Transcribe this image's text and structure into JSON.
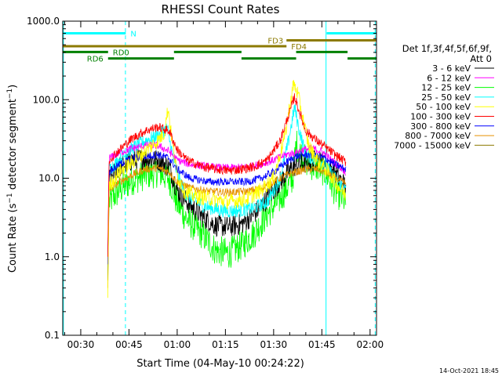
{
  "chart_data": {
    "type": "line",
    "title": "RHESSI Count Rates",
    "xlabel": "Start Time (04-May-10 00:24:22)",
    "ylabel_main": "Count Rate (s",
    "ylabel_exp": "−1",
    "ylabel_mid": " detector segment",
    "ylabel_exp2": "−1",
    "ylabel_end": ")",
    "yscale": "log",
    "ylim": [
      0.1,
      1000
    ],
    "xlim_min": [
      24.4,
      122
    ],
    "y_ticks": [
      {
        "value": 0.1,
        "label": "0.1"
      },
      {
        "value": 1,
        "label": "1.0"
      },
      {
        "value": 10,
        "label": "10.0"
      },
      {
        "value": 100,
        "label": "100.0"
      },
      {
        "value": 1000,
        "label": "1000.0"
      }
    ],
    "x_ticks": [
      {
        "value": 30,
        "label": "00:30"
      },
      {
        "value": 45,
        "label": "00:45"
      },
      {
        "value": 60,
        "label": "01:00"
      },
      {
        "value": 75,
        "label": "01:15"
      },
      {
        "value": 90,
        "label": "01:30"
      },
      {
        "value": 105,
        "label": "01:45"
      },
      {
        "value": 120,
        "label": "02:00"
      }
    ],
    "legend_header": [
      "Det 1f,3f,4f,5f,6f,9f,",
      "Att 0"
    ],
    "legend_position": "right",
    "series": [
      {
        "name": "3 - 6 keV",
        "color": "#000000",
        "anchors": [
          [
            38.4,
            0.5
          ],
          [
            38.8,
            9.5
          ],
          [
            42,
            14
          ],
          [
            46,
            17
          ],
          [
            50,
            18
          ],
          [
            54,
            17
          ],
          [
            57.5,
            14
          ],
          [
            60,
            7
          ],
          [
            63,
            5
          ],
          [
            68,
            3.2
          ],
          [
            72,
            2.5
          ],
          [
            76,
            2.4
          ],
          [
            80,
            2.6
          ],
          [
            84,
            3.5
          ],
          [
            88,
            5.5
          ],
          [
            92,
            9
          ],
          [
            96,
            14
          ],
          [
            98.5,
            15
          ],
          [
            101,
            16
          ],
          [
            103.5,
            17
          ],
          [
            106,
            16
          ],
          [
            109,
            12
          ],
          [
            111,
            9
          ],
          [
            112.5,
            8
          ]
        ]
      },
      {
        "name": "6 - 12 keV",
        "color": "#ff00ff",
        "anchors": [
          [
            38.4,
            0.8
          ],
          [
            38.8,
            18
          ],
          [
            42,
            21
          ],
          [
            46,
            24
          ],
          [
            50,
            26
          ],
          [
            54,
            26
          ],
          [
            57.5,
            22
          ],
          [
            60,
            17
          ],
          [
            64,
            15
          ],
          [
            70,
            14
          ],
          [
            76,
            13.5
          ],
          [
            82,
            14
          ],
          [
            86,
            15
          ],
          [
            90,
            17
          ],
          [
            94,
            20
          ],
          [
            97,
            21
          ],
          [
            99,
            23
          ],
          [
            102,
            24
          ],
          [
            105,
            22
          ],
          [
            108,
            17
          ],
          [
            110.5,
            14
          ],
          [
            112.5,
            12
          ]
        ]
      },
      {
        "name": "12 - 25 keV",
        "color": "#00ff00",
        "anchors": [
          [
            38.4,
            0.5
          ],
          [
            38.8,
            5
          ],
          [
            42,
            7
          ],
          [
            46,
            9.5
          ],
          [
            50,
            11
          ],
          [
            54,
            12
          ],
          [
            57.5,
            10
          ],
          [
            60,
            4.8
          ],
          [
            63,
            3
          ],
          [
            68,
            1.9
          ],
          [
            72,
            1.2
          ],
          [
            76,
            1.1
          ],
          [
            80,
            1.4
          ],
          [
            84,
            2
          ],
          [
            88,
            3.5
          ],
          [
            92,
            5.5
          ],
          [
            96,
            10
          ],
          [
            97,
            28
          ],
          [
            98.5,
            20
          ],
          [
            101,
            15
          ],
          [
            103.5,
            14
          ],
          [
            106,
            12
          ],
          [
            109,
            7
          ],
          [
            112.5,
            5
          ]
        ]
      },
      {
        "name": "25 - 50 keV",
        "color": "#00ffff",
        "anchors": [
          [
            38.4,
            0.8
          ],
          [
            38.8,
            13
          ],
          [
            42,
            17
          ],
          [
            46,
            24
          ],
          [
            50,
            30
          ],
          [
            54,
            35
          ],
          [
            57,
            44
          ],
          [
            57.5,
            32
          ],
          [
            60,
            11
          ],
          [
            63,
            6
          ],
          [
            68,
            4.5
          ],
          [
            72,
            4
          ],
          [
            76,
            3.8
          ],
          [
            80,
            3.9
          ],
          [
            84,
            4.2
          ],
          [
            88,
            5
          ],
          [
            92,
            10
          ],
          [
            94.5,
            28
          ],
          [
            96.5,
            80
          ],
          [
            98,
            40
          ],
          [
            100,
            20
          ],
          [
            103.5,
            17
          ],
          [
            106,
            15
          ],
          [
            109,
            10
          ],
          [
            112.5,
            7
          ]
        ]
      },
      {
        "name": "50 - 100 keV",
        "color": "#ffff00",
        "anchors": [
          [
            38.4,
            0.3
          ],
          [
            38.8,
            8
          ],
          [
            42,
            12
          ],
          [
            46,
            16
          ],
          [
            50,
            22
          ],
          [
            54,
            30
          ],
          [
            56,
            38
          ],
          [
            57.2,
            80
          ],
          [
            58,
            40
          ],
          [
            60,
            11
          ],
          [
            62,
            7
          ],
          [
            65,
            6
          ],
          [
            70,
            5.5
          ],
          [
            76,
            5
          ],
          [
            82,
            5.5
          ],
          [
            86,
            7
          ],
          [
            90,
            10
          ],
          [
            93.5,
            35
          ],
          [
            96.2,
            160
          ],
          [
            97.5,
            120
          ],
          [
            99,
            60
          ],
          [
            101,
            25
          ],
          [
            104,
            16
          ],
          [
            107,
            12
          ],
          [
            110,
            8
          ],
          [
            112.5,
            6
          ]
        ]
      },
      {
        "name": "100 - 300 keV",
        "color": "#ff0000",
        "anchors": [
          [
            38.4,
            1
          ],
          [
            38.8,
            17
          ],
          [
            42,
            23
          ],
          [
            46,
            32
          ],
          [
            50,
            40
          ],
          [
            54,
            45
          ],
          [
            57.5,
            40
          ],
          [
            60,
            23
          ],
          [
            63,
            17
          ],
          [
            68,
            14
          ],
          [
            72,
            13
          ],
          [
            76,
            12.5
          ],
          [
            80,
            13
          ],
          [
            84,
            14
          ],
          [
            88,
            17
          ],
          [
            92,
            30
          ],
          [
            95,
            70
          ],
          [
            96.5,
            110
          ],
          [
            98,
            70
          ],
          [
            100,
            40
          ],
          [
            103.5,
            30
          ],
          [
            106,
            25
          ],
          [
            109,
            20
          ],
          [
            112.5,
            16
          ]
        ]
      },
      {
        "name": "300 - 800 keV",
        "color": "#0000ff",
        "anchors": [
          [
            38.4,
            0.8
          ],
          [
            38.8,
            12
          ],
          [
            42,
            15
          ],
          [
            46,
            18
          ],
          [
            50,
            19
          ],
          [
            54,
            20
          ],
          [
            57.5,
            18
          ],
          [
            60,
            13
          ],
          [
            64,
            10
          ],
          [
            70,
            9
          ],
          [
            76,
            9
          ],
          [
            82,
            9
          ],
          [
            86,
            10
          ],
          [
            90,
            12
          ],
          [
            94,
            16
          ],
          [
            97,
            19
          ],
          [
            100,
            20
          ],
          [
            103.5,
            19
          ],
          [
            106,
            18
          ],
          [
            109,
            15
          ],
          [
            112.5,
            13
          ]
        ]
      },
      {
        "name": "800 - 7000 keV",
        "color": "#e69100",
        "anchors": [
          [
            38.4,
            0.4
          ],
          [
            38.8,
            7
          ],
          [
            42,
            9
          ],
          [
            46,
            11
          ],
          [
            50,
            13
          ],
          [
            54,
            13.5
          ],
          [
            57.5,
            12
          ],
          [
            60,
            9
          ],
          [
            64,
            7.5
          ],
          [
            70,
            6.8
          ],
          [
            76,
            6.6
          ],
          [
            82,
            6.8
          ],
          [
            86,
            7.5
          ],
          [
            90,
            9
          ],
          [
            94,
            11
          ],
          [
            97,
            12
          ],
          [
            100,
            13
          ],
          [
            103.5,
            13
          ],
          [
            106,
            12
          ],
          [
            109,
            10
          ],
          [
            112.5,
            8.5
          ]
        ]
      },
      {
        "name": "7000 - 15000 keV",
        "color": "#8c7a00",
        "anchors": []
      }
    ],
    "states": {
      "N": {
        "label": "N",
        "color": "#00ffff",
        "y": 700,
        "segments": [
          [
            24.4,
            44
          ],
          [
            106.5,
            122
          ]
        ]
      },
      "FD3": {
        "label": "FD3",
        "color": "#8c7a00",
        "y": 570,
        "segments": [
          [
            94,
            122
          ]
        ]
      },
      "FD4": {
        "label": "FD4",
        "color": "#8c7a00",
        "y": 480,
        "segments": [
          [
            24.4,
            94
          ]
        ]
      },
      "RD0": {
        "label": "RD0",
        "color": "#008000",
        "y": 405,
        "segments": [
          [
            24.4,
            38.5
          ],
          [
            59,
            80
          ],
          [
            97,
            113
          ]
        ]
      },
      "RD6": {
        "label": "RD6",
        "color": "#008000",
        "y": 335,
        "segments": [
          [
            38.5,
            59
          ],
          [
            80,
            97
          ],
          [
            113,
            122
          ]
        ]
      }
    },
    "vlines": [
      {
        "x": 24.6,
        "color": "#00ffff",
        "dash": "solid"
      },
      {
        "x": 43.9,
        "color": "#00ffff",
        "dash": "dashed"
      },
      {
        "x": 106.3,
        "color": "#00ffff",
        "dash": "solid"
      },
      {
        "x": 121.6,
        "color": "#00ffff",
        "dash": "dashed"
      }
    ]
  },
  "footer": {
    "timestamp": "14-Oct-2021 18:45"
  }
}
